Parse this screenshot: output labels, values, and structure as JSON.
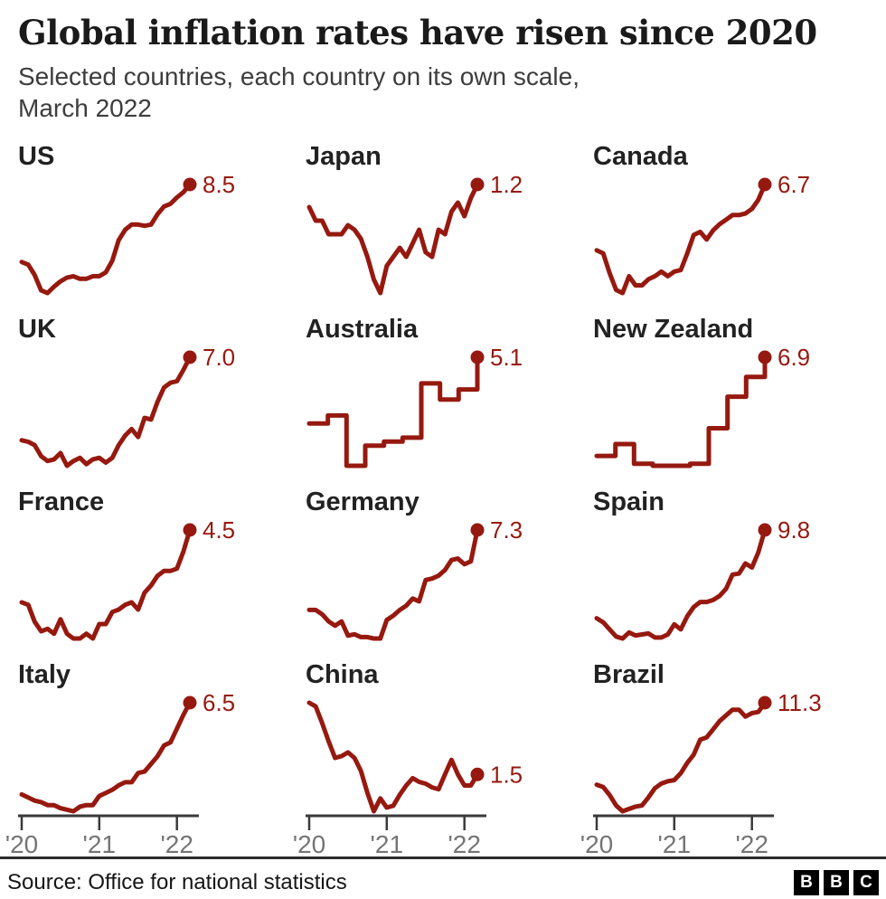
{
  "header": {
    "title": "Global inflation rates have risen since 2020",
    "subtitle_lines": [
      "Selected countries, each country on its own scale,",
      "March 2022"
    ]
  },
  "footer": {
    "source": "Source: Office for national statistics",
    "logo_letters": [
      "B",
      "B",
      "C"
    ]
  },
  "colors": {
    "line": "#96190f",
    "value_label": "#96190f",
    "axis_line": "#3a3a3a",
    "axis_label": "#757575",
    "title": "#1a1a1a",
    "subtitle": "#3d3d3d",
    "country_label": "#222222"
  },
  "chart_data": [
    {
      "type": "line",
      "name": "US",
      "latest_label": "8.5",
      "frequency": "monthly",
      "x_start": "Jan 2020",
      "x_end": "Mar 2022",
      "axis": false,
      "step": false,
      "values": [
        2.5,
        2.3,
        1.5,
        0.3,
        0.1,
        0.6,
        1.0,
        1.3,
        1.4,
        1.2,
        1.2,
        1.4,
        1.4,
        1.7,
        2.6,
        4.2,
        5.0,
        5.4,
        5.4,
        5.3,
        5.4,
        6.2,
        6.8,
        7.0,
        7.5,
        7.9,
        8.5
      ]
    },
    {
      "type": "line",
      "name": "Japan",
      "latest_label": "1.2",
      "frequency": "monthly",
      "x_start": "Jan 2020",
      "x_end": "Mar 2022",
      "axis": false,
      "step": false,
      "values": [
        0.7,
        0.4,
        0.4,
        0.1,
        0.1,
        0.1,
        0.3,
        0.2,
        0.0,
        -0.4,
        -0.9,
        -1.2,
        -0.6,
        -0.4,
        -0.2,
        -0.4,
        -0.1,
        0.2,
        -0.3,
        -0.4,
        0.2,
        0.1,
        0.6,
        0.8,
        0.5,
        0.9,
        1.2
      ]
    },
    {
      "type": "line",
      "name": "Canada",
      "latest_label": "6.7",
      "frequency": "monthly",
      "x_start": "Jan 2020",
      "x_end": "Mar 2022",
      "axis": false,
      "step": false,
      "values": [
        2.4,
        2.2,
        0.9,
        -0.2,
        -0.4,
        0.7,
        0.1,
        0.1,
        0.5,
        0.7,
        1.0,
        0.7,
        1.0,
        1.1,
        2.2,
        3.4,
        3.6,
        3.1,
        3.7,
        4.1,
        4.4,
        4.7,
        4.7,
        4.8,
        5.1,
        5.7,
        6.7
      ]
    },
    {
      "type": "line",
      "name": "UK",
      "latest_label": "7.0",
      "frequency": "monthly",
      "x_start": "Jan 2020",
      "x_end": "Mar 2022",
      "axis": false,
      "step": false,
      "values": [
        1.8,
        1.7,
        1.5,
        0.8,
        0.5,
        0.6,
        1.0,
        0.2,
        0.5,
        0.7,
        0.3,
        0.6,
        0.7,
        0.4,
        0.7,
        1.5,
        2.1,
        2.5,
        2.0,
        3.2,
        3.1,
        4.2,
        5.1,
        5.4,
        5.5,
        6.2,
        7.0
      ]
    },
    {
      "type": "line",
      "name": "Australia",
      "latest_label": "5.1",
      "frequency": "quarterly",
      "x_start": "Q4 2019",
      "x_end": "Q1 2022",
      "axis": false,
      "step": true,
      "values": [
        1.8,
        2.2,
        -0.3,
        0.7,
        0.9,
        1.1,
        3.8,
        3.0,
        3.5,
        5.1
      ]
    },
    {
      "type": "line",
      "name": "New Zealand",
      "latest_label": "6.9",
      "frequency": "quarterly",
      "x_start": "Q4 2019",
      "x_end": "Q1 2022",
      "axis": false,
      "step": true,
      "values": [
        1.9,
        2.5,
        1.5,
        1.4,
        1.4,
        1.5,
        3.3,
        4.9,
        5.9,
        6.9
      ]
    },
    {
      "type": "line",
      "name": "France",
      "latest_label": "4.5",
      "frequency": "monthly",
      "x_start": "Jan 2020",
      "x_end": "Mar 2022",
      "axis": false,
      "step": false,
      "values": [
        1.5,
        1.4,
        0.7,
        0.3,
        0.4,
        0.2,
        0.8,
        0.2,
        0.0,
        0.0,
        0.2,
        0.0,
        0.6,
        0.6,
        1.1,
        1.2,
        1.4,
        1.5,
        1.2,
        1.9,
        2.2,
        2.6,
        2.8,
        2.8,
        2.9,
        3.6,
        4.5
      ]
    },
    {
      "type": "line",
      "name": "Germany",
      "latest_label": "7.3",
      "frequency": "monthly",
      "x_start": "Jan 2020",
      "x_end": "Mar 2022",
      "axis": false,
      "step": false,
      "values": [
        1.7,
        1.7,
        1.4,
        0.9,
        0.6,
        0.9,
        -0.1,
        0.0,
        -0.2,
        -0.2,
        -0.3,
        -0.3,
        1.0,
        1.3,
        1.7,
        2.0,
        2.5,
        2.3,
        3.8,
        3.9,
        4.1,
        4.5,
        5.2,
        5.3,
        4.9,
        5.1,
        7.3
      ]
    },
    {
      "type": "line",
      "name": "Spain",
      "latest_label": "9.8",
      "frequency": "monthly",
      "x_start": "Jan 2020",
      "x_end": "Mar 2022",
      "axis": false,
      "step": false,
      "values": [
        1.1,
        0.7,
        0.0,
        -0.7,
        -0.9,
        -0.3,
        -0.6,
        -0.5,
        -0.4,
        -0.8,
        -0.8,
        -0.5,
        0.5,
        0.0,
        1.3,
        2.2,
        2.7,
        2.7,
        2.9,
        3.3,
        4.0,
        5.4,
        5.5,
        6.5,
        6.1,
        7.6,
        9.8
      ]
    },
    {
      "type": "line",
      "name": "Italy",
      "latest_label": "6.5",
      "frequency": "monthly",
      "x_start": "Jan 2020",
      "x_end": "Mar 2022",
      "axis": true,
      "step": false,
      "x_tick_labels": [
        "'20",
        "'21",
        "'22"
      ],
      "tick_indices": [
        0,
        12,
        24
      ],
      "values": [
        0.5,
        0.3,
        0.1,
        0.0,
        -0.2,
        -0.2,
        -0.4,
        -0.5,
        -0.6,
        -0.3,
        -0.2,
        -0.2,
        0.4,
        0.6,
        0.8,
        1.1,
        1.3,
        1.3,
        1.9,
        2.0,
        2.5,
        3.0,
        3.7,
        3.9,
        4.8,
        5.7,
        6.5
      ]
    },
    {
      "type": "line",
      "name": "China",
      "latest_label": "1.5",
      "frequency": "monthly",
      "x_start": "Jan 2020",
      "x_end": "Mar 2022",
      "axis": true,
      "step": false,
      "x_tick_labels": [
        "'20",
        "'21",
        "'22"
      ],
      "tick_indices": [
        0,
        12,
        24
      ],
      "values": [
        5.4,
        5.2,
        4.3,
        3.3,
        2.4,
        2.5,
        2.7,
        2.4,
        1.7,
        0.5,
        -0.5,
        0.2,
        -0.3,
        -0.2,
        0.4,
        0.9,
        1.3,
        1.1,
        1.0,
        0.8,
        0.7,
        1.5,
        2.3,
        1.5,
        0.9,
        0.9,
        1.5
      ]
    },
    {
      "type": "line",
      "name": "Brazil",
      "latest_label": "11.3",
      "frequency": "monthly",
      "x_start": "Jan 2020",
      "x_end": "Mar 2022",
      "axis": true,
      "step": false,
      "x_tick_labels": [
        "'20",
        "'21",
        "'22"
      ],
      "tick_indices": [
        0,
        12,
        24
      ],
      "values": [
        4.2,
        4.0,
        3.3,
        2.4,
        1.9,
        2.1,
        2.3,
        2.4,
        3.1,
        3.9,
        4.3,
        4.5,
        4.6,
        5.2,
        6.1,
        6.8,
        8.1,
        8.3,
        9.0,
        9.7,
        10.2,
        10.7,
        10.7,
        10.1,
        10.4,
        10.5,
        11.3
      ]
    }
  ]
}
